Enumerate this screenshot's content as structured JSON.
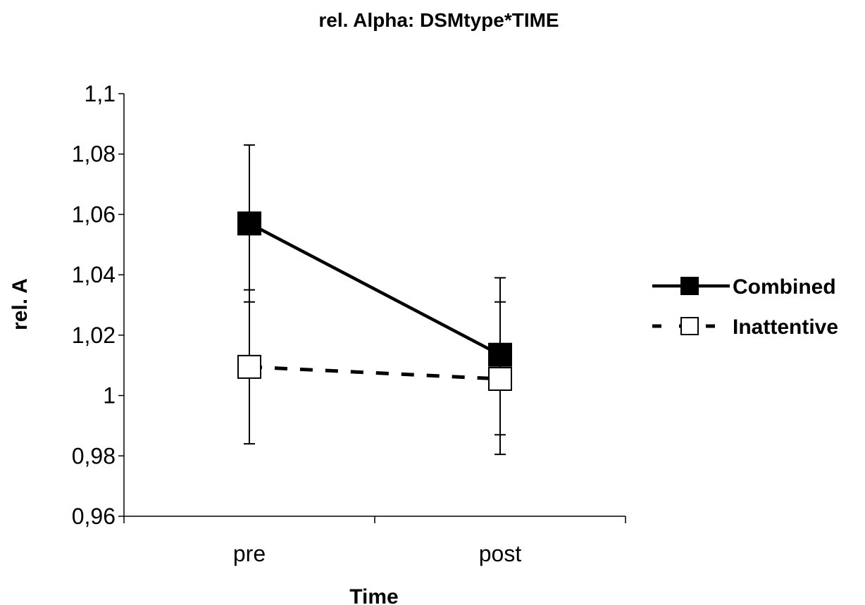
{
  "chart_data": {
    "type": "line",
    "title": "rel. Alpha: DSMtype*TIME",
    "xlabel": "Time",
    "ylabel": "rel. A",
    "categories": [
      "pre",
      "post"
    ],
    "ylim": [
      0.96,
      1.1
    ],
    "yticks": [
      0.96,
      0.98,
      1.0,
      1.02,
      1.04,
      1.06,
      1.08,
      1.1
    ],
    "ytick_labels": [
      "0,96",
      "0,98",
      "1",
      "1,02",
      "1,04",
      "1,06",
      "1,08",
      "1,1"
    ],
    "grid": false,
    "legend_position": "right",
    "series": [
      {
        "name": "Combined",
        "values": [
          1.057,
          1.0135
        ],
        "error_low": [
          1.031,
          0.987
        ],
        "error_high": [
          1.083,
          1.039
        ],
        "line_style": "solid",
        "marker": "filled-square",
        "color": "#000000"
      },
      {
        "name": "Inattentive",
        "values": [
          1.0095,
          1.0055
        ],
        "error_low": [
          0.984,
          0.9805
        ],
        "error_high": [
          1.035,
          1.031
        ],
        "line_style": "dashed",
        "marker": "hollow-square",
        "color": "#000000"
      }
    ]
  }
}
